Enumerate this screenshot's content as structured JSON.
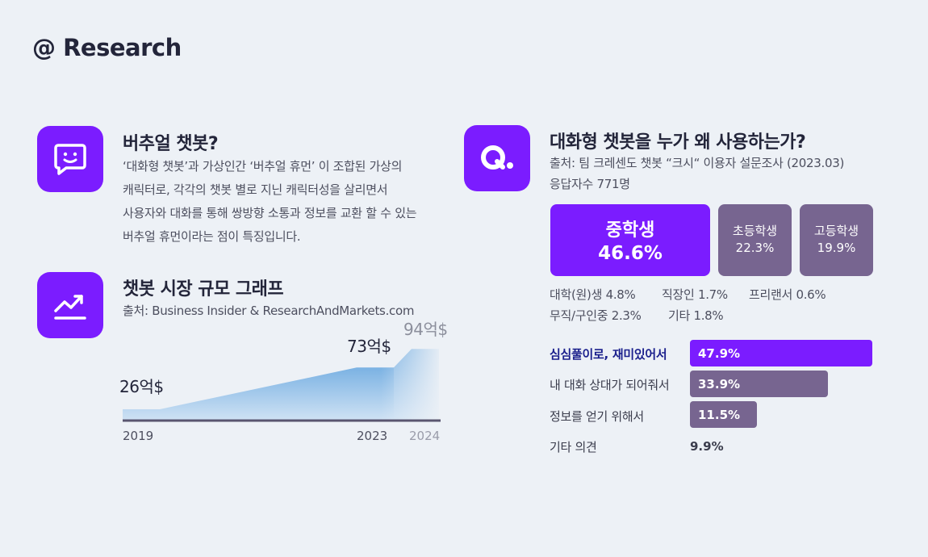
{
  "brand": "@ Research",
  "virtual": {
    "title": "버추얼 챗봇?",
    "lines": [
      "‘대화형 챗봇’과 가상인간 ‘버추얼 휴먼’ 이 조합된 가상의",
      "캐릭터로, 각각의 챗봇 별로 지닌 캐릭터성을 살리면서",
      "사용자와 대화를 통해 쌍방향 소통과 정보를 교환 할 수 있는",
      "버추얼 휴먼이라는 점이 특징입니다."
    ]
  },
  "market": {
    "title": "챗봇 시장 규모 그래프",
    "source": "출처: Business Insider & ResearchAndMarkets.com"
  },
  "chart_data": {
    "type": "area",
    "x": [
      "2019",
      "2023",
      "2024"
    ],
    "values": [
      26,
      73,
      94
    ],
    "labels": [
      "26억$",
      "73억$",
      "94억$"
    ],
    "unit": "억$"
  },
  "survey": {
    "title": "대화형 챗봇을 누가 왜 사용하는가?",
    "source": "출처: 팀 크레센도 챗봇 “크시“ 이용자 설문조사 (2023.03)",
    "respondents": "응답자수 771명",
    "top_group": {
      "label": "중학생",
      "value": "46.6%"
    },
    "groups": [
      {
        "label": "초등학생",
        "value": "22.3%"
      },
      {
        "label": "고등학생",
        "value": "19.9%"
      }
    ],
    "others_row1": [
      "대학(원)생 4.8%",
      "직장인 1.7%",
      "프리랜서 0.6%"
    ],
    "others_row2": [
      "무직/구인중 2.3%",
      "기타 1.8%"
    ],
    "reasons": [
      {
        "label": "심심풀이로, 재미있어서",
        "value": "47.9%",
        "pct": 47.9
      },
      {
        "label": "내 대화 상대가 되어줘서",
        "value": "33.9%",
        "pct": 33.9
      },
      {
        "label": "정보를 얻기 위해서",
        "value": "11.5%",
        "pct": 11.5
      },
      {
        "label": "기타 의견",
        "value": "9.9%",
        "pct": 9.9
      }
    ]
  },
  "colors": {
    "accent": "#7b1cff",
    "muted": "#776590",
    "area_top": "#7bb2e3",
    "area_bottom": "#dbe8f5",
    "baseline": "#5a5670"
  },
  "icons": [
    "smile-chat-icon",
    "q-icon",
    "trend-up-icon"
  ]
}
